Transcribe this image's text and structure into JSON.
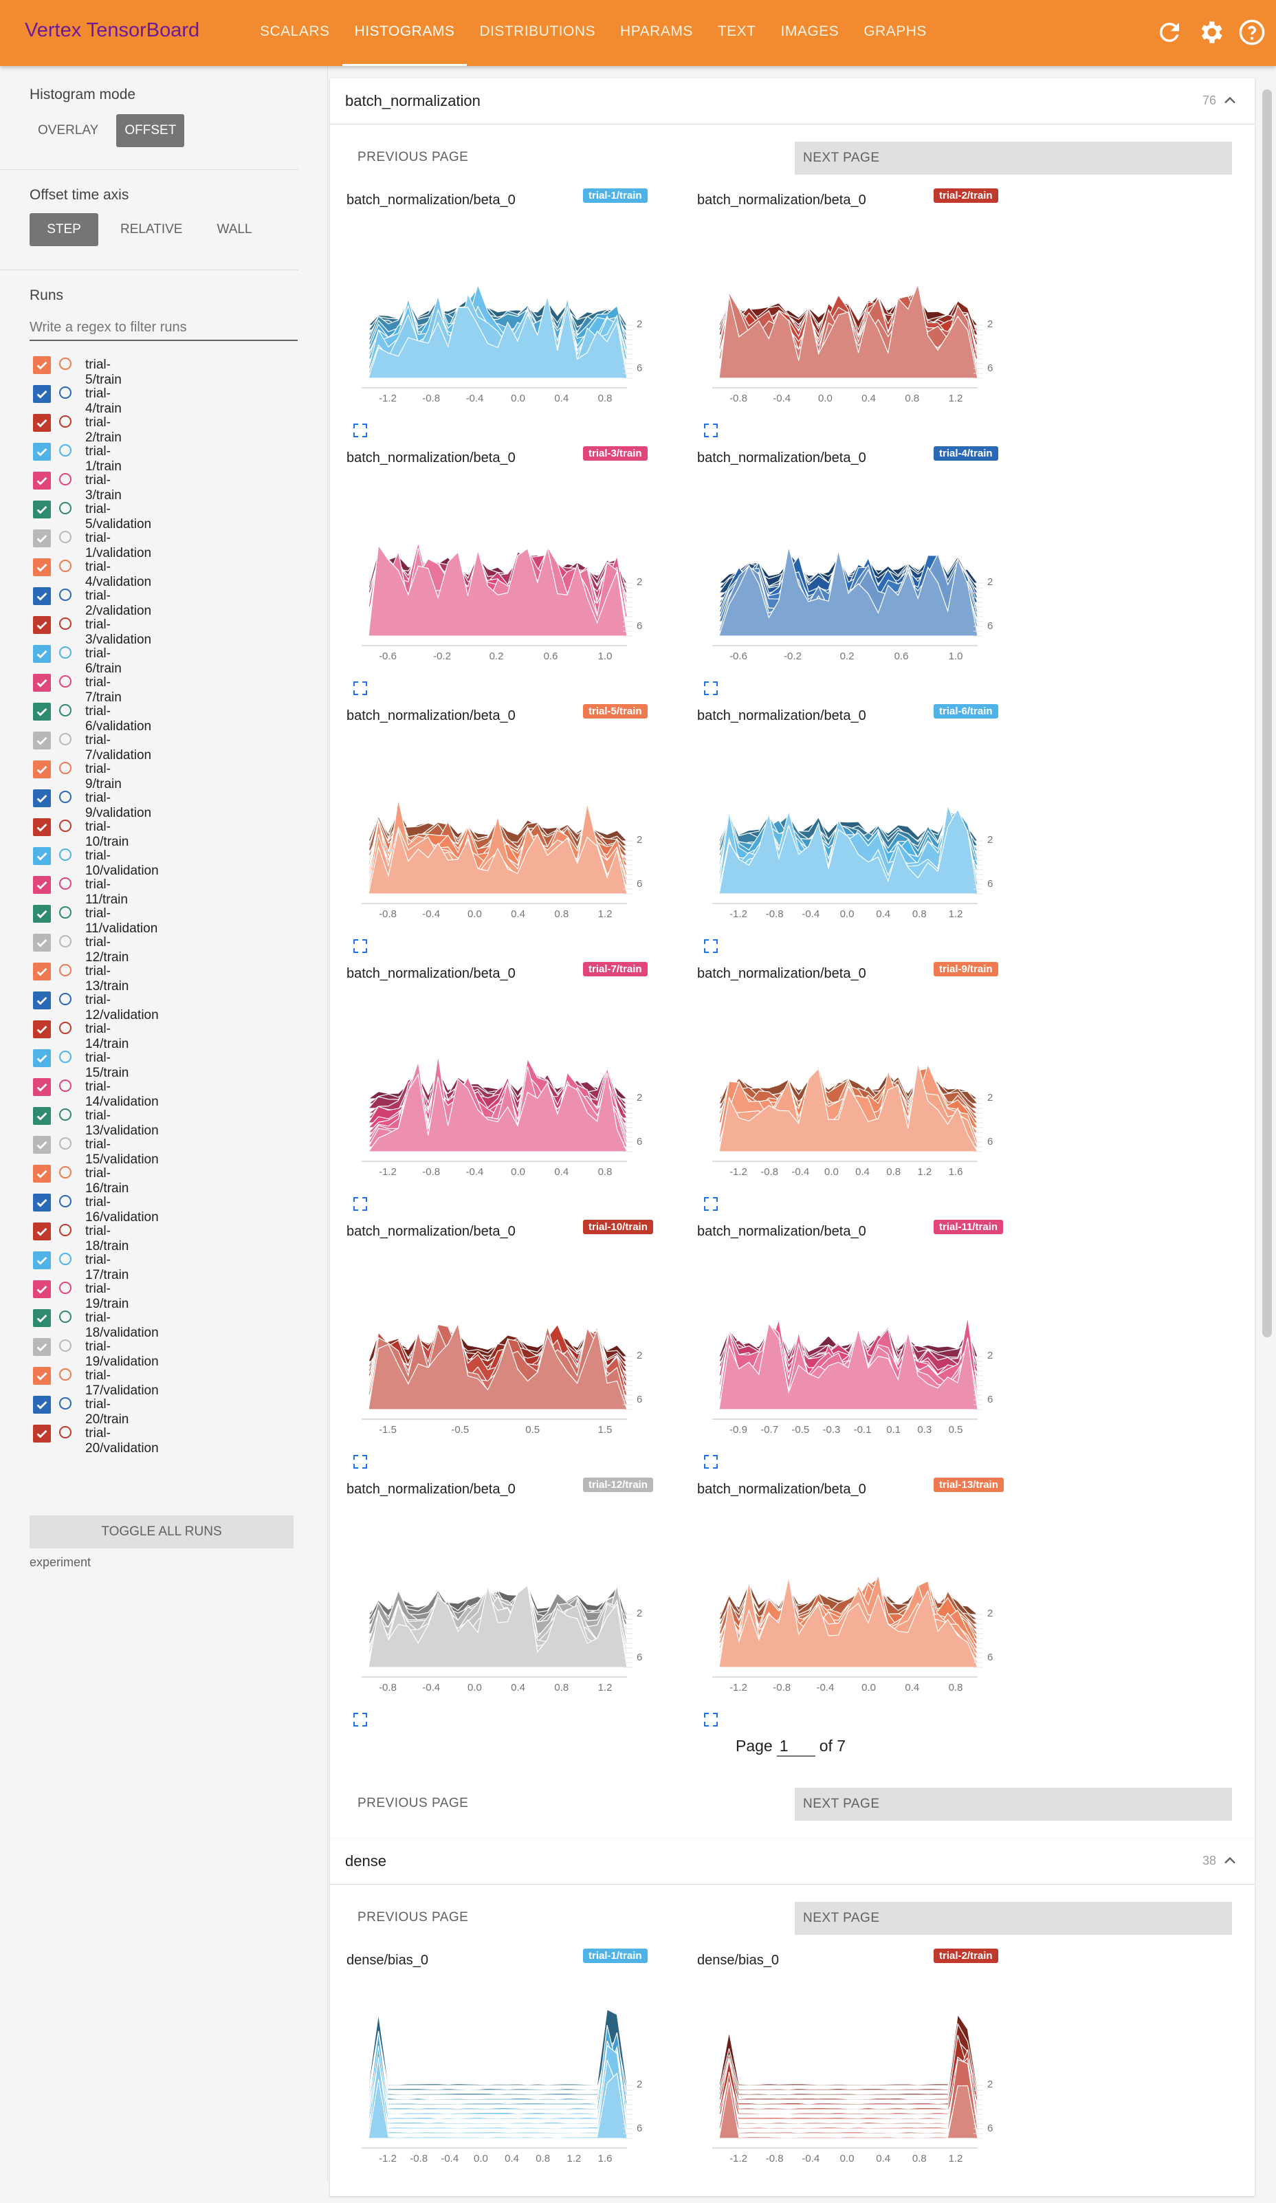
{
  "app": {
    "title": "Vertex TensorBoard",
    "tabs": [
      {
        "label": "SCALARS",
        "active": false
      },
      {
        "label": "HISTOGRAMS",
        "active": true
      },
      {
        "label": "DISTRIBUTIONS",
        "active": false
      },
      {
        "label": "HPARAMS",
        "active": false
      },
      {
        "label": "TEXT",
        "active": false
      },
      {
        "label": "IMAGES",
        "active": false
      },
      {
        "label": "GRAPHS",
        "active": false
      }
    ],
    "icons": [
      "refresh-icon",
      "settings-icon",
      "help-icon"
    ]
  },
  "sidebar": {
    "histogram_mode": {
      "label": "Histogram mode",
      "options": [
        "OVERLAY",
        "OFFSET"
      ],
      "selected": "OFFSET"
    },
    "offset_axis": {
      "label": "Offset time axis",
      "options": [
        "STEP",
        "RELATIVE",
        "WALL"
      ],
      "selected": "STEP"
    },
    "runs_label": "Runs",
    "filter_placeholder": "Write a regex to filter runs",
    "runs": [
      {
        "name": "trial-5/train",
        "color": "#ef7a50"
      },
      {
        "name": "trial-4/train",
        "color": "#2a69b5"
      },
      {
        "name": "trial-2/train",
        "color": "#c0392b"
      },
      {
        "name": "trial-1/train",
        "color": "#4fb3e8"
      },
      {
        "name": "trial-3/train",
        "color": "#e0457b"
      },
      {
        "name": "trial-5/validation",
        "color": "#2e8b6f"
      },
      {
        "name": "trial-1/validation",
        "color": "#b8b8b8"
      },
      {
        "name": "trial-4/validation",
        "color": "#ef7a50"
      },
      {
        "name": "trial-2/validation",
        "color": "#2a69b5"
      },
      {
        "name": "trial-3/validation",
        "color": "#c0392b"
      },
      {
        "name": "trial-6/train",
        "color": "#4fb3e8"
      },
      {
        "name": "trial-7/train",
        "color": "#e0457b"
      },
      {
        "name": "trial-6/validation",
        "color": "#2e8b6f"
      },
      {
        "name": "trial-7/validation",
        "color": "#b8b8b8"
      },
      {
        "name": "trial-9/train",
        "color": "#ef7a50"
      },
      {
        "name": "trial-9/validation",
        "color": "#2a69b5"
      },
      {
        "name": "trial-10/train",
        "color": "#c0392b"
      },
      {
        "name": "trial-10/validation",
        "color": "#4fb3e8"
      },
      {
        "name": "trial-11/train",
        "color": "#e0457b"
      },
      {
        "name": "trial-11/validation",
        "color": "#2e8b6f"
      },
      {
        "name": "trial-12/train",
        "color": "#b8b8b8"
      },
      {
        "name": "trial-13/train",
        "color": "#ef7a50"
      },
      {
        "name": "trial-12/validation",
        "color": "#2a69b5"
      },
      {
        "name": "trial-14/train",
        "color": "#c0392b"
      },
      {
        "name": "trial-15/train",
        "color": "#4fb3e8"
      },
      {
        "name": "trial-14/validation",
        "color": "#e0457b"
      },
      {
        "name": "trial-13/validation",
        "color": "#2e8b6f"
      },
      {
        "name": "trial-15/validation",
        "color": "#b8b8b8"
      },
      {
        "name": "trial-16/train",
        "color": "#ef7a50"
      },
      {
        "name": "trial-16/validation",
        "color": "#2a69b5"
      },
      {
        "name": "trial-18/train",
        "color": "#c0392b"
      },
      {
        "name": "trial-17/train",
        "color": "#4fb3e8"
      },
      {
        "name": "trial-19/train",
        "color": "#e0457b"
      },
      {
        "name": "trial-18/validation",
        "color": "#2e8b6f"
      },
      {
        "name": "trial-19/validation",
        "color": "#b8b8b8"
      },
      {
        "name": "trial-17/validation",
        "color": "#ef7a50"
      },
      {
        "name": "trial-20/train",
        "color": "#2a69b5"
      },
      {
        "name": "trial-20/validation",
        "color": "#c0392b"
      }
    ],
    "toggle_all": "TOGGLE ALL RUNS",
    "experiment": "experiment"
  },
  "pager": {
    "prev": "PREVIOUS PAGE",
    "next": "NEXT PAGE",
    "page_word": "Page",
    "page": "1",
    "of_text": "of 7"
  },
  "groups": [
    {
      "name": "batch_normalization",
      "count": "76",
      "charts": [
        {
          "title": "batch_normalization/beta_0",
          "run": "trial-1/train",
          "color": "#4fb3e8",
          "ticks": [
            "-1.2",
            "-0.8",
            "-0.4",
            "0.0",
            "0.4",
            "0.8"
          ],
          "steps": [
            "2",
            "6"
          ],
          "seed": 11
        },
        {
          "title": "batch_normalization/beta_0",
          "run": "trial-2/train",
          "color": "#c0392b",
          "ticks": [
            "-0.8",
            "-0.4",
            "0.0",
            "0.4",
            "0.8",
            "1.2"
          ],
          "steps": [
            "2",
            "6"
          ],
          "seed": 23
        },
        {
          "title": "batch_normalization/beta_0",
          "run": "trial-3/train",
          "color": "#e0457b",
          "ticks": [
            "-0.6",
            "-0.2",
            "0.2",
            "0.6",
            "1.0"
          ],
          "steps": [
            "2",
            "6"
          ],
          "seed": 37
        },
        {
          "title": "batch_normalization/beta_0",
          "run": "trial-4/train",
          "color": "#2a69b5",
          "ticks": [
            "-0.6",
            "-0.2",
            "0.2",
            "0.6",
            "1.0"
          ],
          "steps": [
            "2",
            "6"
          ],
          "seed": 41
        },
        {
          "title": "batch_normalization/beta_0",
          "run": "trial-5/train",
          "color": "#ef7a50",
          "ticks": [
            "-0.8",
            "-0.4",
            "0.0",
            "0.4",
            "0.8",
            "1.2"
          ],
          "steps": [
            "2",
            "6"
          ],
          "seed": 53
        },
        {
          "title": "batch_normalization/beta_0",
          "run": "trial-6/train",
          "color": "#4fb3e8",
          "ticks": [
            "-1.2",
            "-0.8",
            "-0.4",
            "0.0",
            "0.4",
            "0.8",
            "1.2"
          ],
          "steps": [
            "2",
            "6"
          ],
          "seed": 67
        },
        {
          "title": "batch_normalization/beta_0",
          "run": "trial-7/train",
          "color": "#e0457b",
          "ticks": [
            "-1.2",
            "-0.8",
            "-0.4",
            "0.0",
            "0.4",
            "0.8"
          ],
          "steps": [
            "2",
            "6"
          ],
          "seed": 71
        },
        {
          "title": "batch_normalization/beta_0",
          "run": "trial-9/train",
          "color": "#ef7a50",
          "ticks": [
            "-1.2",
            "-0.8",
            "-0.4",
            "0.0",
            "0.4",
            "0.8",
            "1.2",
            "1.6"
          ],
          "steps": [
            "2",
            "6"
          ],
          "seed": 83
        },
        {
          "title": "batch_normalization/beta_0",
          "run": "trial-10/train",
          "color": "#c0392b",
          "ticks": [
            "-1.5",
            "-0.5",
            "0.5",
            "1.5"
          ],
          "steps": [
            "2",
            "6"
          ],
          "seed": 97
        },
        {
          "title": "batch_normalization/beta_0",
          "run": "trial-11/train",
          "color": "#e0457b",
          "ticks": [
            "-0.9",
            "-0.7",
            "-0.5",
            "-0.3",
            "-0.1",
            "0.1",
            "0.3",
            "0.5"
          ],
          "steps": [
            "2",
            "6"
          ],
          "seed": 101
        },
        {
          "title": "batch_normalization/beta_0",
          "run": "trial-12/train",
          "color": "#b8b8b8",
          "ticks": [
            "-0.8",
            "-0.4",
            "0.0",
            "0.4",
            "0.8",
            "1.2"
          ],
          "steps": [
            "2",
            "6"
          ],
          "seed": 113
        },
        {
          "title": "batch_normalization/beta_0",
          "run": "trial-13/train",
          "color": "#ef7a50",
          "ticks": [
            "-1.2",
            "-0.8",
            "-0.4",
            "0.0",
            "0.4",
            "0.8"
          ],
          "steps": [
            "2",
            "6"
          ],
          "seed": 127
        }
      ]
    },
    {
      "name": "dense",
      "count": "38",
      "charts": [
        {
          "title": "dense/bias_0",
          "run": "trial-1/train",
          "color": "#4fb3e8",
          "ticks": [
            "-1.2",
            "-0.8",
            "-0.4",
            "0.0",
            "0.4",
            "0.8",
            "1.2",
            "1.6"
          ],
          "steps": [
            "2",
            "6"
          ],
          "seed": 131,
          "sparse": true
        },
        {
          "title": "dense/bias_0",
          "run": "trial-2/train",
          "color": "#c0392b",
          "ticks": [
            "-1.2",
            "-0.8",
            "-0.4",
            "0.0",
            "0.4",
            "0.8",
            "1.2"
          ],
          "steps": [
            "2",
            "6"
          ],
          "seed": 139,
          "sparse": true
        }
      ]
    }
  ]
}
